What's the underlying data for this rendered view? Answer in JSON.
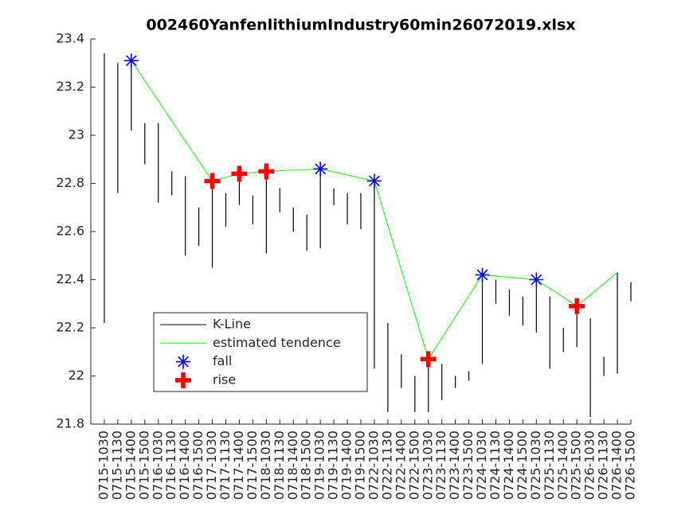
{
  "chart_data": {
    "type": "kline",
    "title": "002460YanfenlithiumIndustry60min26072019.xlsx",
    "categories": [
      "0715-1030",
      "0715-1130",
      "0715-1400",
      "0715-1500",
      "0716-1030",
      "0716-1130",
      "0716-1400",
      "0716-1500",
      "0717-1030",
      "0717-1130",
      "0717-1400",
      "0717-1500",
      "0718-1030",
      "0718-1130",
      "0718-1400",
      "0718-1500",
      "0719-1030",
      "0719-1130",
      "0719-1400",
      "0719-1500",
      "0722-1030",
      "0722-1130",
      "0722-1400",
      "0722-1500",
      "0723-1030",
      "0723-1130",
      "0723-1400",
      "0723-1500",
      "0724-1030",
      "0724-1130",
      "0724-1400",
      "0724-1500",
      "0725-1030",
      "0725-1130",
      "0725-1400",
      "0725-1500",
      "0726-1030",
      "0726-1130",
      "0726-1400",
      "0726-1500"
    ],
    "series": [
      {
        "name": "K-Line",
        "color": "#000000",
        "low": [
          22.22,
          22.76,
          23.02,
          22.88,
          22.72,
          22.75,
          22.5,
          22.54,
          22.45,
          22.62,
          22.71,
          22.63,
          22.51,
          22.68,
          22.6,
          22.52,
          22.53,
          22.71,
          22.63,
          22.61,
          22.03,
          21.85,
          21.95,
          21.85,
          21.85,
          21.9,
          21.95,
          21.98,
          22.05,
          22.3,
          22.25,
          22.21,
          22.18,
          22.03,
          22.1,
          22.12,
          21.83,
          22.0,
          22.01,
          22.31
        ],
        "high": [
          23.34,
          23.3,
          23.31,
          23.05,
          23.05,
          22.85,
          22.83,
          22.7,
          22.81,
          22.76,
          22.84,
          22.75,
          22.86,
          22.78,
          22.7,
          22.67,
          22.86,
          22.78,
          22.76,
          22.76,
          22.81,
          22.22,
          22.09,
          22.0,
          22.1,
          22.05,
          22.0,
          22.02,
          22.42,
          22.4,
          22.36,
          22.33,
          22.41,
          22.33,
          22.2,
          22.31,
          22.24,
          22.08,
          22.43,
          22.39
        ]
      },
      {
        "name": "estimated tendence",
        "color": "#00ff00",
        "x": [
          "0715-1400",
          "0717-1030",
          "0717-1400",
          "0718-1030",
          "0719-1030",
          "0722-1030",
          "0723-1030",
          "0724-1030",
          "0725-1030",
          "0725-1500",
          "0726-1400"
        ],
        "values": [
          23.31,
          22.81,
          22.84,
          22.85,
          22.86,
          22.81,
          22.07,
          22.42,
          22.4,
          22.29,
          22.43
        ]
      },
      {
        "name": "fall",
        "color": "#0000ff",
        "marker": "asterisk",
        "x": [
          "0715-1400",
          "0719-1030",
          "0722-1030",
          "0724-1030",
          "0725-1030"
        ],
        "values": [
          23.31,
          22.86,
          22.81,
          22.42,
          22.4
        ]
      },
      {
        "name": "rise",
        "color": "#ff0000",
        "marker": "plus",
        "x": [
          "0717-1030",
          "0717-1400",
          "0718-1030",
          "0723-1030",
          "0725-1500"
        ],
        "values": [
          22.81,
          22.84,
          22.85,
          22.07,
          22.29
        ]
      }
    ],
    "xlim": [
      0,
      40
    ],
    "ylim": [
      21.8,
      23.4
    ],
    "yticks": [
      21.8,
      22,
      22.2,
      22.4,
      22.6,
      22.8,
      23,
      23.2,
      23.4
    ]
  }
}
